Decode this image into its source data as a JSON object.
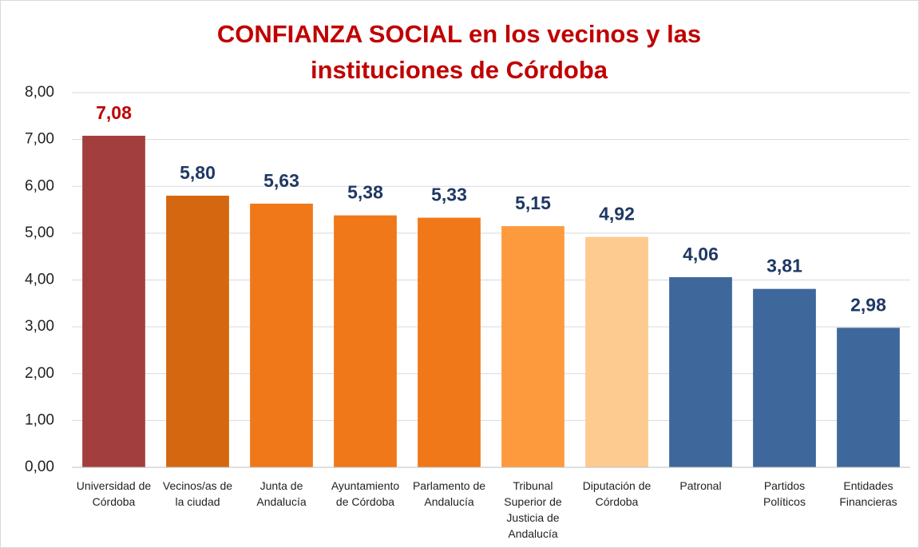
{
  "chart_data": {
    "type": "bar",
    "title": "CONFIANZA SOCIAL en los vecinos y las instituciones de Córdoba",
    "categories": [
      "Universidad de Córdoba",
      "Vecinos/as de la ciudad",
      "Junta de Andalucía",
      "Ayuntamiento de Córdoba",
      "Parlamento de Andalucía",
      "Tribunal Superior de Justicia de Andalucía",
      "Diputación de Córdoba",
      "Patronal",
      "Partidos Políticos",
      "Entidades Financieras"
    ],
    "values": [
      7.08,
      5.8,
      5.63,
      5.38,
      5.33,
      5.15,
      4.92,
      4.06,
      3.81,
      2.98
    ],
    "value_labels": [
      "7,08",
      "5,80",
      "5,63",
      "5,38",
      "5,33",
      "5,15",
      "4,92",
      "4,06",
      "3,81",
      "2,98"
    ],
    "colors": [
      "#a33e3e",
      "#d4670f",
      "#f07818",
      "#f07818",
      "#f07818",
      "#fd9a3e",
      "#fdca8f",
      "#3e689b",
      "#3e689b",
      "#3e689b"
    ],
    "value_label_colors": [
      "#c00000",
      "#1f3864",
      "#1f3864",
      "#1f3864",
      "#1f3864",
      "#1f3864",
      "#1f3864",
      "#1f3864",
      "#1f3864",
      "#1f3864"
    ],
    "ylim": [
      0,
      8
    ],
    "yticks": [
      {
        "value": 0,
        "label": "0,00"
      },
      {
        "value": 1,
        "label": "1,00"
      },
      {
        "value": 2,
        "label": "2,00"
      },
      {
        "value": 3,
        "label": "3,00"
      },
      {
        "value": 4,
        "label": "4,00"
      },
      {
        "value": 5,
        "label": "5,00"
      },
      {
        "value": 6,
        "label": "6,00"
      },
      {
        "value": 7,
        "label": "7,00"
      },
      {
        "value": 8,
        "label": "8,00"
      }
    ],
    "grid": true
  }
}
